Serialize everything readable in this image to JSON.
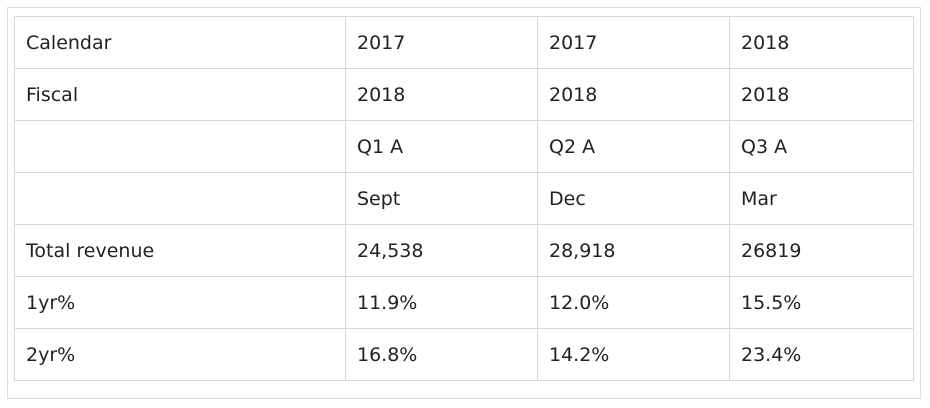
{
  "table": {
    "rows": [
      {
        "label": "Calendar",
        "values": [
          "2017",
          "2017",
          "2018"
        ]
      },
      {
        "label": "Fiscal",
        "values": [
          "2018",
          "2018",
          "2018"
        ]
      },
      {
        "label": "",
        "values": [
          "Q1 A",
          "Q2 A",
          "Q3 A"
        ]
      },
      {
        "label": "",
        "values": [
          "Sept",
          "Dec",
          "Mar"
        ]
      },
      {
        "label": "Total revenue",
        "values": [
          "24,538",
          "28,918",
          "26819"
        ]
      },
      {
        "label": "1yr%",
        "values": [
          "11.9%",
          "12.0%",
          "15.5%"
        ]
      },
      {
        "label": "2yr%",
        "values": [
          "16.8%",
          "14.2%",
          "23.4%"
        ]
      }
    ]
  }
}
